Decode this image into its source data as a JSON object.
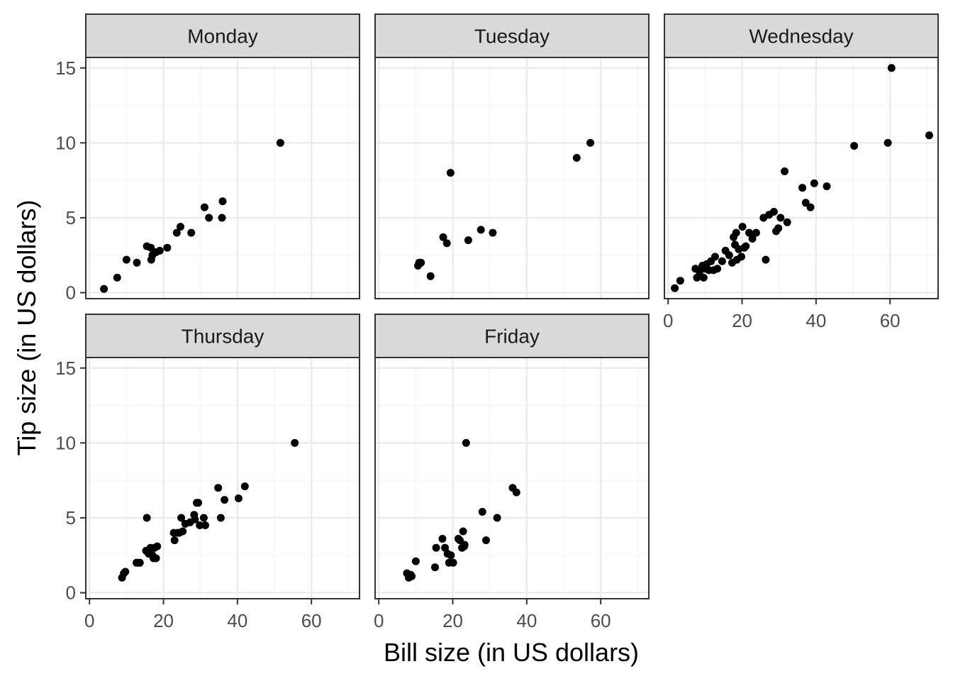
{
  "chart_data": {
    "type": "scatter",
    "layout": "facet_wrap",
    "xlabel": "Bill size (in US dollars)",
    "ylabel": "Tip size (in US dollars)",
    "xlim": [
      -1,
      73
    ],
    "ylim": [
      -0.4,
      15.7
    ],
    "x_ticks": [
      0,
      20,
      40,
      60
    ],
    "y_ticks": [
      0,
      5,
      10,
      15
    ],
    "grid": true,
    "colors": {
      "point": "#000000",
      "strip_fill": "#d9d9d9",
      "grid_major": "#ebebeb",
      "grid_minor": "#f5f5f5",
      "panel_border": "#333333"
    },
    "panels": [
      {
        "label": "Monday",
        "points": [
          [
            3.9,
            0.25
          ],
          [
            7.5,
            1
          ],
          [
            10,
            2.2
          ],
          [
            12.8,
            2
          ],
          [
            15.5,
            3.1
          ],
          [
            16.7,
            2.2
          ],
          [
            16.6,
            3
          ],
          [
            17,
            2.5
          ],
          [
            18,
            2.7
          ],
          [
            19,
            2.8
          ],
          [
            21,
            3
          ],
          [
            23.6,
            4
          ],
          [
            24.6,
            4.4
          ],
          [
            27.5,
            4
          ],
          [
            31.1,
            5.7
          ],
          [
            32.3,
            5
          ],
          [
            35.8,
            5
          ],
          [
            36,
            6.1
          ],
          [
            51.6,
            10
          ]
        ]
      },
      {
        "label": "Tuesday",
        "points": [
          [
            10.6,
            1.8
          ],
          [
            10.9,
            2
          ],
          [
            11.4,
            2
          ],
          [
            14,
            1.1
          ],
          [
            17.4,
            3.7
          ],
          [
            18.4,
            3.3
          ],
          [
            19.4,
            8
          ],
          [
            24.2,
            3.5
          ],
          [
            27.6,
            4.2
          ],
          [
            30.8,
            4
          ],
          [
            53.5,
            9
          ],
          [
            57.2,
            10
          ]
        ]
      },
      {
        "label": "Wednesday",
        "points": [
          [
            1.8,
            0.3
          ],
          [
            3.3,
            0.8
          ],
          [
            7.4,
            1.6
          ],
          [
            7.8,
            1
          ],
          [
            8.5,
            1.4
          ],
          [
            9.3,
            1.8
          ],
          [
            9.6,
            1
          ],
          [
            10.1,
            1.6
          ],
          [
            10.4,
            1.9
          ],
          [
            11,
            1.5
          ],
          [
            11.6,
            2.1
          ],
          [
            12.3,
            1.5
          ],
          [
            12.7,
            2.4
          ],
          [
            13.3,
            1.6
          ],
          [
            14.6,
            2.1
          ],
          [
            15.5,
            2.8
          ],
          [
            16.5,
            2.5
          ],
          [
            17.3,
            2
          ],
          [
            17.7,
            3.7
          ],
          [
            18.1,
            3.2
          ],
          [
            18.4,
            4
          ],
          [
            18.6,
            2.2
          ],
          [
            19.1,
            2.9
          ],
          [
            19.8,
            2.4
          ],
          [
            20.1,
            4.4
          ],
          [
            20.6,
            3
          ],
          [
            21,
            3.1
          ],
          [
            21.9,
            4
          ],
          [
            22.8,
            3.6
          ],
          [
            23.8,
            4
          ],
          [
            25.8,
            5
          ],
          [
            26.4,
            2.2
          ],
          [
            27.3,
            5.2
          ],
          [
            28.6,
            5.4
          ],
          [
            29.2,
            4.1
          ],
          [
            29.8,
            4.3
          ],
          [
            30.4,
            5
          ],
          [
            31.5,
            8.1
          ],
          [
            32.2,
            4.7
          ],
          [
            36.3,
            7
          ],
          [
            37.2,
            6
          ],
          [
            38.5,
            5.7
          ],
          [
            39.5,
            7.3
          ],
          [
            42.9,
            7.1
          ],
          [
            50.3,
            9.8
          ],
          [
            59.4,
            10
          ],
          [
            60.4,
            15
          ],
          [
            70.6,
            10.5
          ]
        ]
      },
      {
        "label": "Thursday",
        "points": [
          [
            8.8,
            1
          ],
          [
            9.3,
            1.3
          ],
          [
            9.7,
            1.4
          ],
          [
            12.7,
            2
          ],
          [
            13.2,
            2
          ],
          [
            13.6,
            2
          ],
          [
            15.3,
            2.8
          ],
          [
            15.5,
            5
          ],
          [
            16,
            2.6
          ],
          [
            16.5,
            3
          ],
          [
            17,
            2.5
          ],
          [
            17.3,
            2.3
          ],
          [
            17.6,
            3
          ],
          [
            18,
            2.3
          ],
          [
            18.3,
            3.1
          ],
          [
            22.8,
            4
          ],
          [
            23,
            3.5
          ],
          [
            23.9,
            4
          ],
          [
            24.3,
            4
          ],
          [
            24.8,
            5
          ],
          [
            25.2,
            4.1
          ],
          [
            25.9,
            4.6
          ],
          [
            27.2,
            4.7
          ],
          [
            28.3,
            5.2
          ],
          [
            28.5,
            4.9
          ],
          [
            29,
            6
          ],
          [
            29.4,
            6
          ],
          [
            29.8,
            4.5
          ],
          [
            30.9,
            5
          ],
          [
            31.3,
            4.5
          ],
          [
            34.8,
            7
          ],
          [
            35.5,
            5
          ],
          [
            36.5,
            6.2
          ],
          [
            40.3,
            6.3
          ],
          [
            42,
            7.1
          ],
          [
            55.5,
            10
          ]
        ]
      },
      {
        "label": "Friday",
        "points": [
          [
            7.6,
            1.3
          ],
          [
            8.1,
            1
          ],
          [
            8.6,
            1.2
          ],
          [
            8.9,
            1.1
          ],
          [
            10,
            2.1
          ],
          [
            15.2,
            1.7
          ],
          [
            15.5,
            3
          ],
          [
            17.2,
            3.6
          ],
          [
            17.9,
            3
          ],
          [
            18.6,
            2.6
          ],
          [
            19,
            2
          ],
          [
            19.5,
            2.5
          ],
          [
            20.1,
            2
          ],
          [
            21.5,
            3.6
          ],
          [
            21.9,
            3.5
          ],
          [
            22.5,
            3
          ],
          [
            22.8,
            4.1
          ],
          [
            23.1,
            3.1
          ],
          [
            23.2,
            3.2
          ],
          [
            23.6,
            10
          ],
          [
            28,
            5.4
          ],
          [
            29,
            3.5
          ],
          [
            32,
            5
          ],
          [
            36.2,
            7
          ],
          [
            37.2,
            6.7
          ]
        ]
      }
    ]
  }
}
